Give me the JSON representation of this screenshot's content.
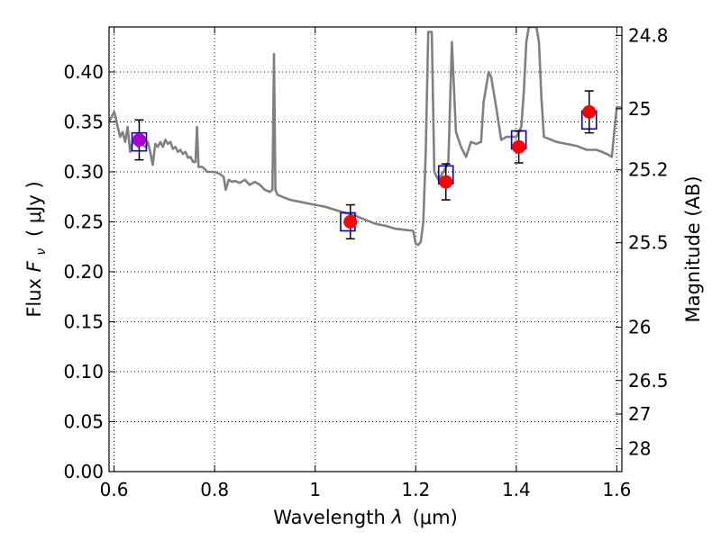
{
  "chart_data": {
    "type": "line",
    "xlabel": {
      "prefix": "Wavelength ",
      "var": "λ",
      "unit": "(μm)"
    },
    "ylabel": {
      "prefix": "Flux ",
      "var": "F",
      "sub": "ν",
      "unit": "( μJy )"
    },
    "ylabel_right": "Magnitude (AB)",
    "xlim": [
      0.59,
      1.61
    ],
    "ylim": [
      0.0,
      0.445
    ],
    "grid": true,
    "x_ticks": [
      {
        "value": 0.6,
        "label": "0.6"
      },
      {
        "value": 0.8,
        "label": "0.8"
      },
      {
        "value": 1.0,
        "label": "1"
      },
      {
        "value": 1.2,
        "label": "1.2"
      },
      {
        "value": 1.4,
        "label": "1.4"
      },
      {
        "value": 1.6,
        "label": "1.6"
      }
    ],
    "y_ticks": [
      {
        "value": 0.0,
        "label": "0.00"
      },
      {
        "value": 0.05,
        "label": "0.05"
      },
      {
        "value": 0.1,
        "label": "0.10"
      },
      {
        "value": 0.15,
        "label": "0.15"
      },
      {
        "value": 0.2,
        "label": "0.20"
      },
      {
        "value": 0.25,
        "label": "0.25"
      },
      {
        "value": 0.3,
        "label": "0.30"
      },
      {
        "value": 0.35,
        "label": "0.35"
      },
      {
        "value": 0.4,
        "label": "0.40"
      }
    ],
    "magnitude_ticks": [
      {
        "value": 24.8,
        "label": "24.8"
      },
      {
        "value": 25.0,
        "label": "25"
      },
      {
        "value": 25.2,
        "label": "25.2"
      },
      {
        "value": 25.5,
        "label": "25.5"
      },
      {
        "value": 26.0,
        "label": "26"
      },
      {
        "value": 26.5,
        "label": "26.5"
      },
      {
        "value": 27.0,
        "label": "27"
      },
      {
        "value": 28.0,
        "label": "28"
      }
    ],
    "series": [
      {
        "kind": "model-spectrum",
        "color": "#808080",
        "points": [
          [
            0.59,
            0.35
          ],
          [
            0.595,
            0.355
          ],
          [
            0.6,
            0.36
          ],
          [
            0.603,
            0.355
          ],
          [
            0.607,
            0.345
          ],
          [
            0.612,
            0.335
          ],
          [
            0.617,
            0.34
          ],
          [
            0.622,
            0.33
          ],
          [
            0.627,
            0.345
          ],
          [
            0.632,
            0.32
          ],
          [
            0.637,
            0.33
          ],
          [
            0.642,
            0.335
          ],
          [
            0.647,
            0.325
          ],
          [
            0.652,
            0.33
          ],
          [
            0.657,
            0.327
          ],
          [
            0.662,
            0.325
          ],
          [
            0.667,
            0.33
          ],
          [
            0.672,
            0.32
          ],
          [
            0.677,
            0.307
          ],
          [
            0.682,
            0.328
          ],
          [
            0.687,
            0.325
          ],
          [
            0.692,
            0.33
          ],
          [
            0.697,
            0.325
          ],
          [
            0.702,
            0.332
          ],
          [
            0.707,
            0.328
          ],
          [
            0.712,
            0.33
          ],
          [
            0.717,
            0.323
          ],
          [
            0.722,
            0.325
          ],
          [
            0.727,
            0.32
          ],
          [
            0.732,
            0.322
          ],
          [
            0.737,
            0.318
          ],
          [
            0.742,
            0.32
          ],
          [
            0.747,
            0.314
          ],
          [
            0.752,
            0.315
          ],
          [
            0.757,
            0.31
          ],
          [
            0.762,
            0.31
          ],
          [
            0.765,
            0.345
          ],
          [
            0.768,
            0.305
          ],
          [
            0.775,
            0.305
          ],
          [
            0.78,
            0.303
          ],
          [
            0.785,
            0.3
          ],
          [
            0.79,
            0.3
          ],
          [
            0.8,
            0.3
          ],
          [
            0.81,
            0.298
          ],
          [
            0.818,
            0.295
          ],
          [
            0.822,
            0.282
          ],
          [
            0.828,
            0.292
          ],
          [
            0.835,
            0.29
          ],
          [
            0.84,
            0.291
          ],
          [
            0.85,
            0.289
          ],
          [
            0.86,
            0.292
          ],
          [
            0.87,
            0.287
          ],
          [
            0.88,
            0.29
          ],
          [
            0.89,
            0.287
          ],
          [
            0.9,
            0.282
          ],
          [
            0.91,
            0.28
          ],
          [
            0.915,
            0.282
          ],
          [
            0.918,
            0.418
          ],
          [
            0.921,
            0.282
          ],
          [
            0.925,
            0.277
          ],
          [
            0.935,
            0.275
          ],
          [
            0.95,
            0.272
          ],
          [
            0.97,
            0.27
          ],
          [
            1.0,
            0.267
          ],
          [
            1.02,
            0.265
          ],
          [
            1.04,
            0.262
          ],
          [
            1.06,
            0.259
          ],
          [
            1.08,
            0.256
          ],
          [
            1.1,
            0.252
          ],
          [
            1.12,
            0.248
          ],
          [
            1.14,
            0.246
          ],
          [
            1.16,
            0.243
          ],
          [
            1.18,
            0.242
          ],
          [
            1.195,
            0.241
          ],
          [
            1.2,
            0.228
          ],
          [
            1.205,
            0.227
          ],
          [
            1.21,
            0.23
          ],
          [
            1.215,
            0.25
          ],
          [
            1.22,
            0.32
          ],
          [
            1.225,
            0.44
          ],
          [
            1.232,
            0.44
          ],
          [
            1.237,
            0.3
          ],
          [
            1.245,
            0.292
          ],
          [
            1.255,
            0.3
          ],
          [
            1.265,
            0.31
          ],
          [
            1.272,
            0.43
          ],
          [
            1.28,
            0.34
          ],
          [
            1.29,
            0.325
          ],
          [
            1.3,
            0.315
          ],
          [
            1.31,
            0.33
          ],
          [
            1.32,
            0.328
          ],
          [
            1.33,
            0.33
          ],
          [
            1.335,
            0.37
          ],
          [
            1.345,
            0.4
          ],
          [
            1.35,
            0.395
          ],
          [
            1.36,
            0.365
          ],
          [
            1.37,
            0.332
          ],
          [
            1.38,
            0.335
          ],
          [
            1.4,
            0.335
          ],
          [
            1.41,
            0.345
          ],
          [
            1.415,
            0.38
          ],
          [
            1.42,
            0.43
          ],
          [
            1.425,
            0.445
          ],
          [
            1.44,
            0.445
          ],
          [
            1.445,
            0.43
          ],
          [
            1.45,
            0.375
          ],
          [
            1.455,
            0.335
          ],
          [
            1.47,
            0.332
          ],
          [
            1.48,
            0.33
          ],
          [
            1.5,
            0.328
          ],
          [
            1.52,
            0.326
          ],
          [
            1.54,
            0.322
          ],
          [
            1.56,
            0.322
          ],
          [
            1.58,
            0.318
          ],
          [
            1.59,
            0.315
          ],
          [
            1.595,
            0.34
          ],
          [
            1.6,
            0.365
          ],
          [
            1.61,
            0.364
          ]
        ]
      },
      {
        "kind": "model-photometry",
        "name": "",
        "color": "#0000cc",
        "points": [
          [
            0.65,
            0.33
          ],
          [
            1.065,
            0.25
          ],
          [
            1.26,
            0.297
          ],
          [
            1.405,
            0.332
          ],
          [
            1.545,
            0.352
          ]
        ]
      },
      {
        "kind": "observed-photometry",
        "name": "",
        "points": [
          {
            "x": 0.65,
            "y": 0.332,
            "err": 0.02,
            "color": "#aa00cc"
          },
          {
            "x": 1.07,
            "y": 0.25,
            "err": 0.017,
            "color": "#ff0000"
          },
          {
            "x": 1.26,
            "y": 0.29,
            "err": 0.018,
            "color": "#ff0000"
          },
          {
            "x": 1.405,
            "y": 0.325,
            "err": 0.016,
            "color": "#ff0000"
          },
          {
            "x": 1.545,
            "y": 0.36,
            "err": 0.021,
            "color": "#ff0000"
          }
        ]
      }
    ]
  }
}
